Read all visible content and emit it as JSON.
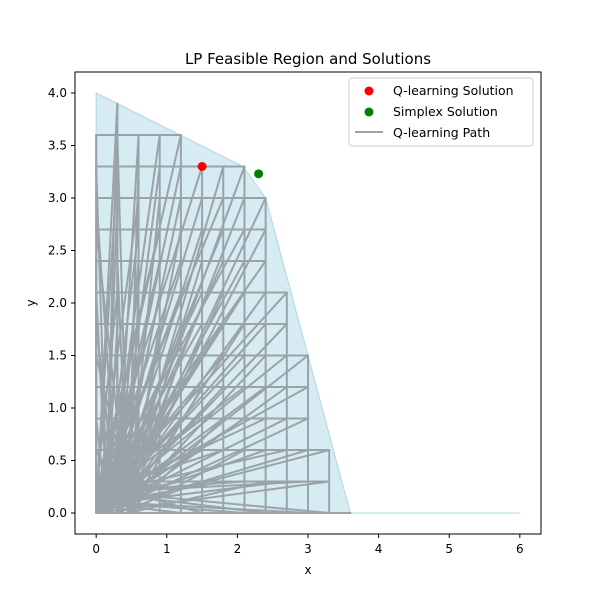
{
  "chart_data": {
    "type": "scatter",
    "title": "LP Feasible Region and Solutions",
    "xlabel": "x",
    "ylabel": "y",
    "xlim": [
      -0.3,
      6.3
    ],
    "ylim": [
      -0.2,
      4.2
    ],
    "xticks": [
      0,
      1,
      2,
      3,
      4,
      5,
      6
    ],
    "yticks": [
      0.0,
      0.5,
      1.0,
      1.5,
      2.0,
      2.5,
      3.0,
      3.5,
      4.0
    ],
    "xtick_labels": [
      "0",
      "1",
      "2",
      "3",
      "4",
      "5",
      "6"
    ],
    "ytick_labels": [
      "0.0",
      "0.5",
      "1.0",
      "1.5",
      "2.0",
      "2.5",
      "3.0",
      "3.5",
      "4.0"
    ],
    "feasible_region": {
      "color": "#add8e6",
      "vertices": [
        [
          0,
          4.0
        ],
        [
          2.08,
          3.3
        ],
        [
          2.4,
          3.0
        ],
        [
          3.6,
          0.0
        ],
        [
          6.0,
          0.0
        ],
        [
          0,
          0.0
        ]
      ]
    },
    "q_learning_solution": {
      "name": "Q-learning Solution",
      "color": "#ff0000",
      "x": 1.5,
      "y": 3.3
    },
    "simplex_solution": {
      "name": "Simplex Solution",
      "color": "#008000",
      "x": 2.3,
      "y": 3.23
    },
    "q_learning_path": {
      "name": "Q-learning Path",
      "color": "#9aa4a8",
      "grid_rows": [
        {
          "y": 3.6,
          "x_max": 1.2
        },
        {
          "y": 3.3,
          "x_max": 2.1
        },
        {
          "y": 3.0,
          "x_max": 2.4
        },
        {
          "y": 2.7,
          "x_max": 2.4
        },
        {
          "y": 2.4,
          "x_max": 2.4
        },
        {
          "y": 2.1,
          "x_max": 2.7
        },
        {
          "y": 1.8,
          "x_max": 2.7
        },
        {
          "y": 1.5,
          "x_max": 3.0
        },
        {
          "y": 1.2,
          "x_max": 3.0
        },
        {
          "y": 0.9,
          "x_max": 3.0
        },
        {
          "y": 0.6,
          "x_max": 3.3
        },
        {
          "y": 0.3,
          "x_max": 3.3
        },
        {
          "y": 0.0,
          "x_max": 3.6
        }
      ],
      "spike_top": [
        0.3,
        3.9
      ]
    },
    "legend": {
      "position": "top-right",
      "entries": [
        "Q-learning Solution",
        "Simplex Solution",
        "Q-learning Path"
      ]
    },
    "grid": false
  }
}
